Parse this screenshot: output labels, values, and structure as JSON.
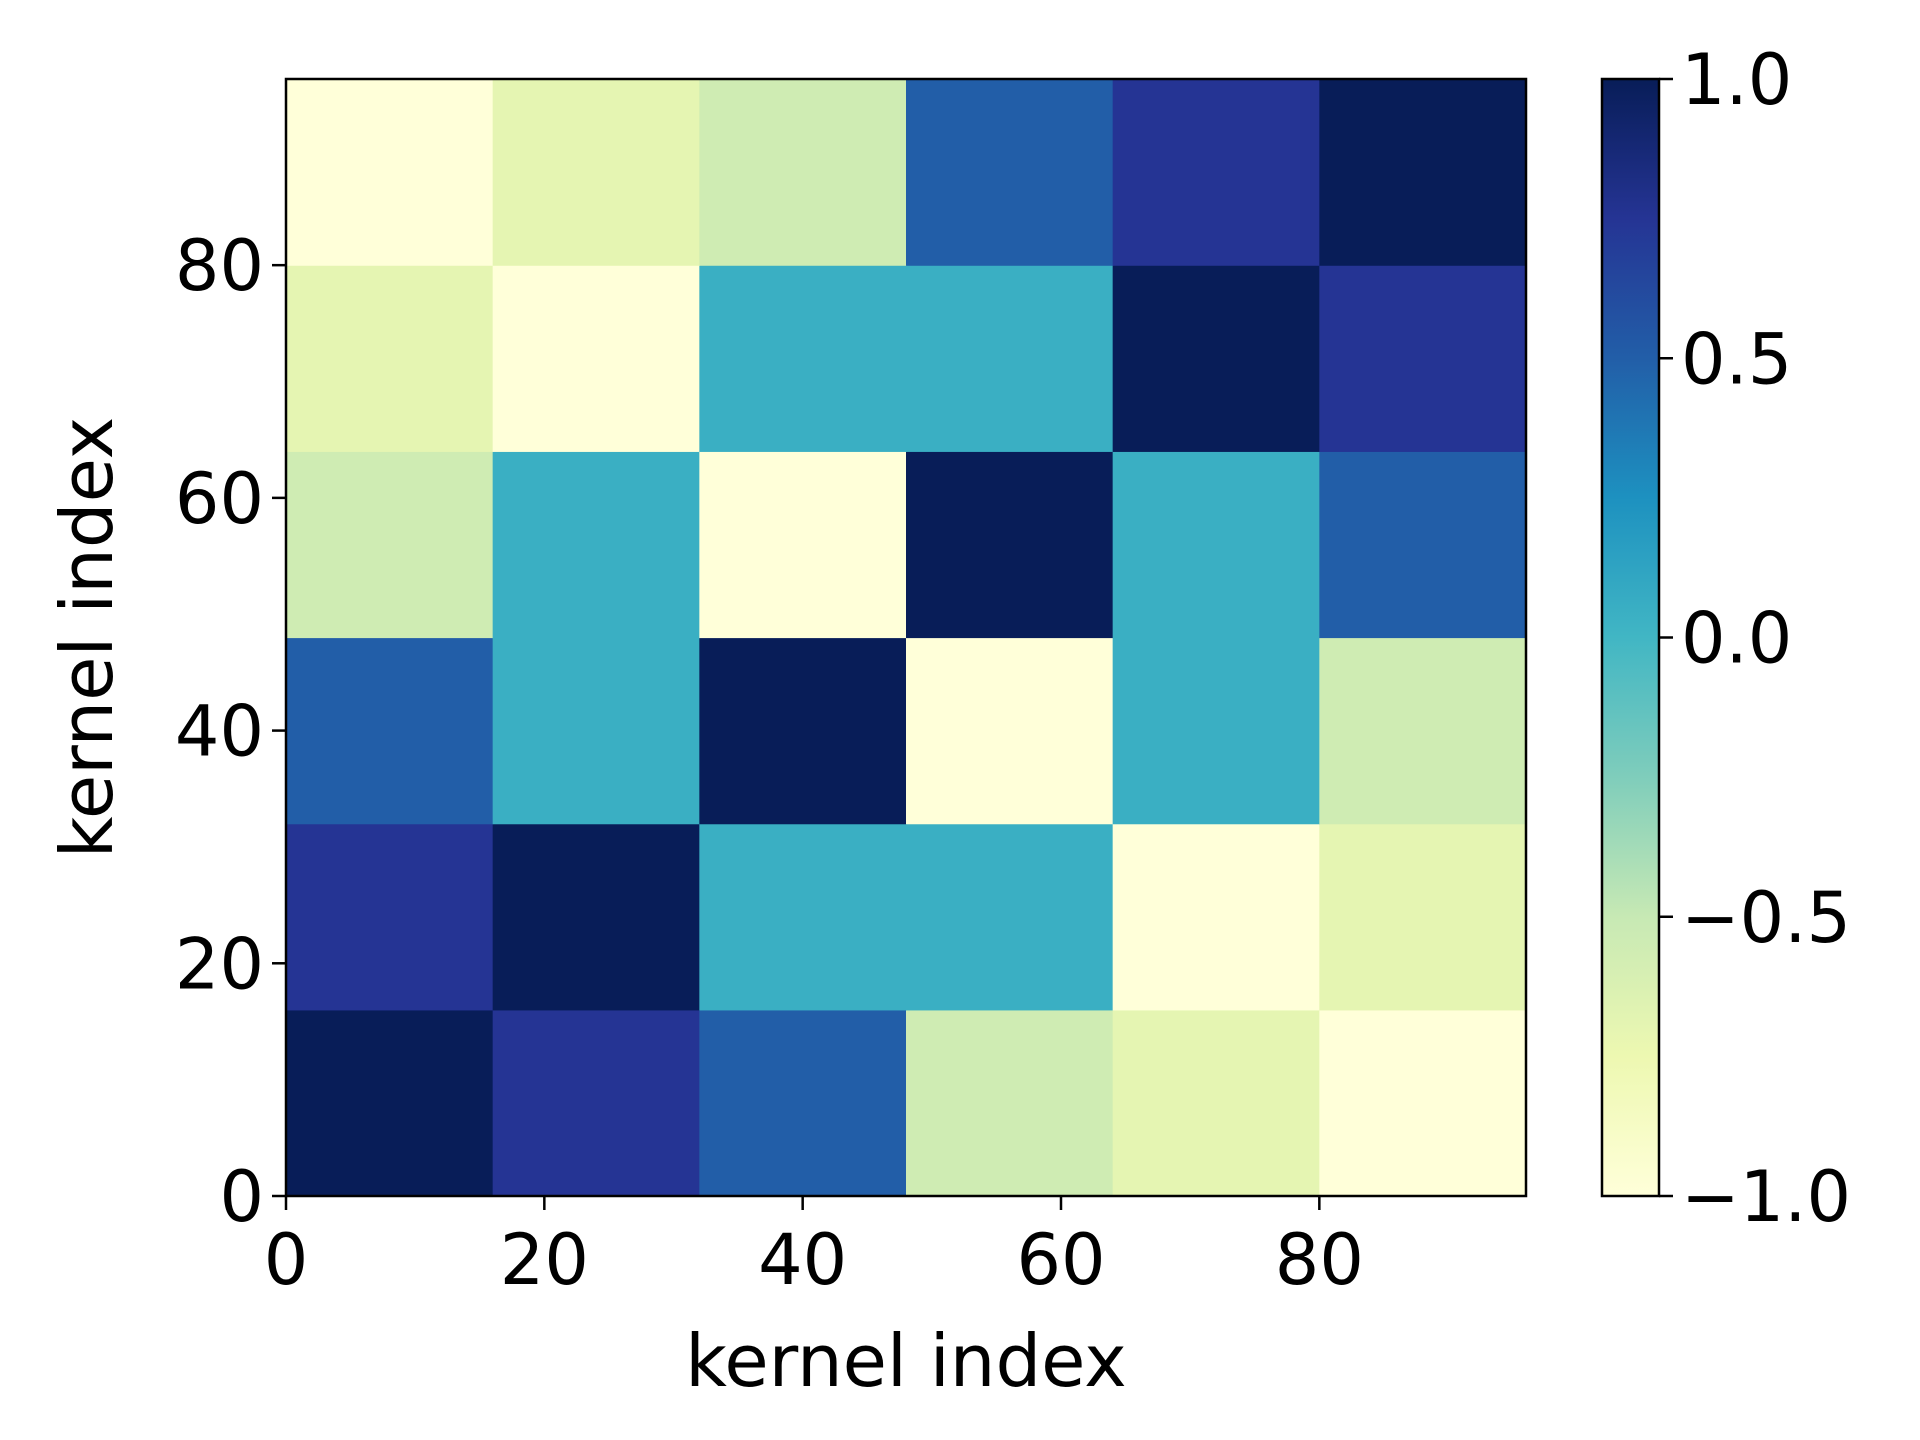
{
  "chart_data": {
    "type": "heatmap",
    "title": "",
    "xlabel": "kernel index",
    "ylabel": "kernel index",
    "xlim": [
      0,
      96
    ],
    "ylim": [
      0,
      96
    ],
    "x_ticks": [
      0,
      20,
      40,
      60,
      80
    ],
    "y_ticks": [
      0,
      20,
      40,
      60,
      80
    ],
    "block_size": 16,
    "rows_from_bottom": [
      [
        1.0,
        0.75,
        0.5,
        -0.55,
        -0.7,
        -1.0
      ],
      [
        0.75,
        1.0,
        0.05,
        0.05,
        -1.0,
        -0.7
      ],
      [
        0.5,
        0.05,
        1.0,
        -1.0,
        0.05,
        -0.55
      ],
      [
        -0.55,
        0.05,
        -1.0,
        1.0,
        0.05,
        0.5
      ],
      [
        -0.7,
        -1.0,
        0.05,
        0.05,
        1.0,
        0.75
      ],
      [
        -1.0,
        -0.7,
        -0.55,
        0.5,
        0.75,
        1.0
      ]
    ],
    "colorbar": {
      "range": [
        -1.0,
        1.0
      ],
      "ticks": [
        -1.0,
        -0.5,
        0.0,
        0.5,
        1.0
      ],
      "tick_labels": [
        "−1.0",
        "−0.5",
        "0.0",
        "0.5",
        "1.0"
      ],
      "colormap": "YlGnBu",
      "colormap_stops": [
        "#ffffd9",
        "#edf8b1",
        "#c7e9b4",
        "#7fcdbb",
        "#41b6c4",
        "#1d91c0",
        "#225ea8",
        "#253494",
        "#081d58"
      ]
    }
  }
}
